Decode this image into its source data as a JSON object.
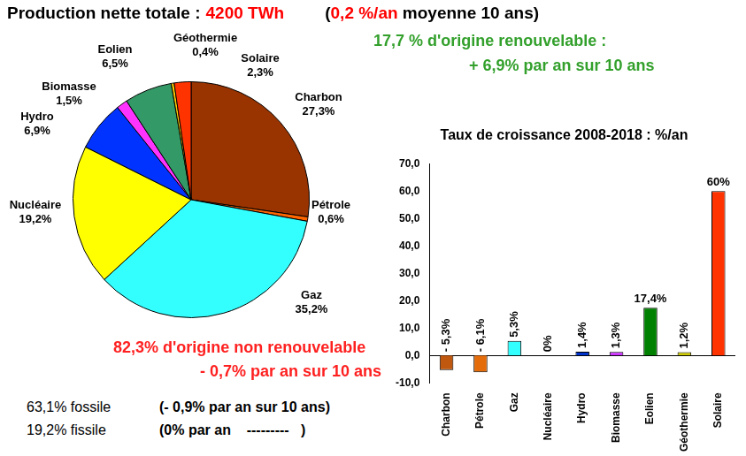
{
  "chart_data": [
    {
      "type": "pie",
      "title": "Production nette totale :",
      "categories": [
        "Charbon",
        "Pétrole",
        "Gaz",
        "Nucléaire",
        "Hydro",
        "Biomasse",
        "Eolien",
        "Géothermie",
        "Solaire"
      ],
      "values": [
        27.3,
        0.6,
        35.2,
        19.2,
        6.9,
        1.5,
        6.5,
        0.4,
        2.3
      ],
      "value_labels": [
        "27,3%",
        "0,6%",
        "35,2%",
        "19,2%",
        "6,9%",
        "1,5%",
        "6,5%",
        "0,4%",
        "2,3%"
      ],
      "colors": [
        "#993300",
        "#ff6600",
        "#33ffff",
        "#ffff00",
        "#0033ff",
        "#ff33ff",
        "#339966",
        "#ffcc00",
        "#ff3300"
      ],
      "data_labels": true,
      "annotations": [
        [
          {
            "text": "4200 TWh",
            "color": "#ff0000"
          },
          {
            "text": "(",
            "color": "#000000"
          },
          {
            "text": "0,2 %/an",
            "color": "#ff0000"
          },
          {
            "text": " moyenne 10 ans)",
            "color": "#000000"
          }
        ],
        [
          {
            "text": "17,7 % d'origine renouvelable :",
            "color": "#33a02c"
          }
        ],
        [
          {
            "text": "+ 6,9% par an sur 10 ans",
            "color": "#33a02c"
          }
        ],
        [
          {
            "text": "82,3% d'origine non renouvelable",
            "color": "#ff2020"
          }
        ],
        [
          {
            "text": "- 0,7% par an sur 10 ans",
            "color": "#ff2020"
          }
        ],
        [
          {
            "text": "63,1% fossile",
            "color": "#000000"
          },
          {
            "text": "(- 0,9% par an sur 10 ans)",
            "color": "#000000"
          }
        ],
        [
          {
            "text": "19,2% fissile",
            "color": "#000000"
          },
          {
            "text": "(0% par an    ---------   )",
            "color": "#000000"
          }
        ]
      ]
    },
    {
      "type": "bar",
      "title": "Taux de croissance 2008-2018 : %/an",
      "categories": [
        "Charbon",
        "Pétrole",
        "Gaz",
        "Nucléaire",
        "Hydro",
        "Biomasse",
        "Eolien",
        "Géothermie",
        "Solaire"
      ],
      "values": [
        -5.3,
        -6.1,
        5.3,
        0,
        1.4,
        1.3,
        17.4,
        1.2,
        60
      ],
      "value_labels": [
        "- 5,3%",
        "- 6,1%",
        "5,3%",
        "0%",
        "1,4%",
        "1,3%",
        "17,4%",
        "1,2%",
        "60%"
      ],
      "colors": [
        "#c0580f",
        "#e46c0a",
        "#33ffff",
        "#ffff00",
        "#0033cc",
        "#cc33ff",
        "#008000",
        "#cccc00",
        "#ff3300"
      ],
      "ylim": [
        -10,
        70
      ],
      "yticks": [
        {
          "value": -10,
          "label": "-10,0"
        },
        {
          "value": 0,
          "label": "0,0"
        },
        {
          "value": 10,
          "label": "10,0"
        },
        {
          "value": 20,
          "label": "20,0"
        },
        {
          "value": 30,
          "label": "30,0"
        },
        {
          "value": 40,
          "label": "40,0"
        },
        {
          "value": 50,
          "label": "50,0"
        },
        {
          "value": 60,
          "label": "60,0"
        },
        {
          "value": 70,
          "label": "70,0"
        }
      ],
      "grid": false,
      "data_labels": true
    }
  ]
}
